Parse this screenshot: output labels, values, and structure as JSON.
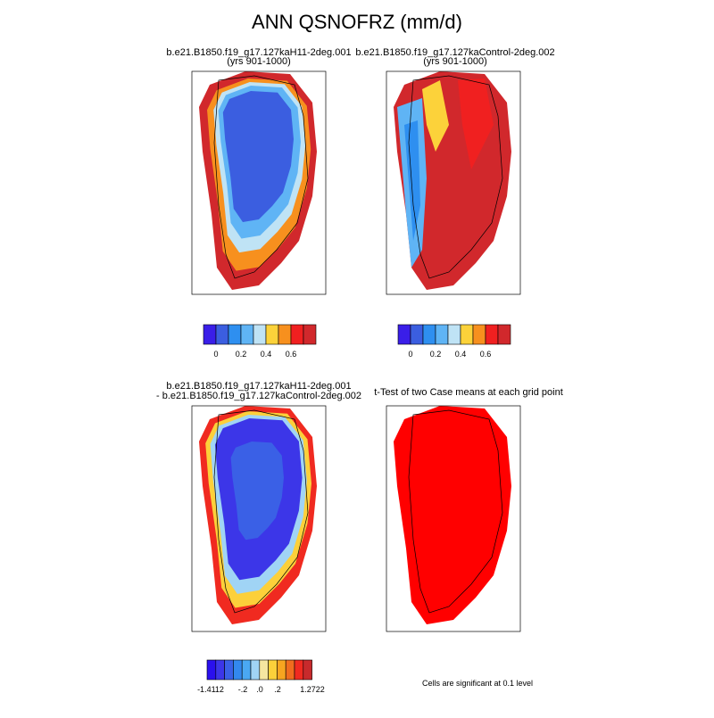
{
  "title": "ANN QSNOFRZ (mm/d)",
  "panels": [
    {
      "title_lines": [
        "b.e21.B1850.f19_g17.127kaH11-2deg.001",
        "(yrs 901-1000)"
      ]
    },
    {
      "title_lines": [
        "b.e21.B1850.f19_g17.127kaControl-2deg.002",
        "(yrs 901-1000)"
      ]
    },
    {
      "title_lines": [
        "b.e21.B1850.f19_g17.127kaH11-2deg.001",
        "- b.e21.B1850.f19_g17.127kaControl-2deg.002"
      ]
    },
    {
      "title_lines": [
        "t-Test of two Case means at each grid point"
      ]
    }
  ],
  "colorbars": [
    {
      "colors": [
        "#3a1ee8",
        "#3b5ee0",
        "#2e8ff0",
        "#5fb4f5",
        "#bfe3f5",
        "#fcd23a",
        "#f7901e",
        "#f02020",
        "#d1282c"
      ],
      "labels": [
        "0",
        "0.2",
        "0.4",
        "0.6"
      ]
    },
    {
      "colors": [
        "#3a1ee8",
        "#3b5ee0",
        "#2e8ff0",
        "#5fb4f5",
        "#bfe3f5",
        "#fcd23a",
        "#f7901e",
        "#f02020",
        "#d1282c"
      ],
      "labels": [
        "0",
        "0.2",
        "0.4",
        "0.6"
      ]
    },
    {
      "colors": [
        "#2a10ee",
        "#3c36e8",
        "#3a60e6",
        "#3388ee",
        "#4aa8f2",
        "#a0d4f5",
        "#f5e6a0",
        "#fcd03a",
        "#f7a520",
        "#f06c1e",
        "#f02a20",
        "#c82a2c"
      ],
      "labels": [
        "-1.4112",
        "-.2",
        ".0",
        ".2",
        "1.2722"
      ]
    }
  ],
  "note": "Cells are significant at 0.1 level"
}
